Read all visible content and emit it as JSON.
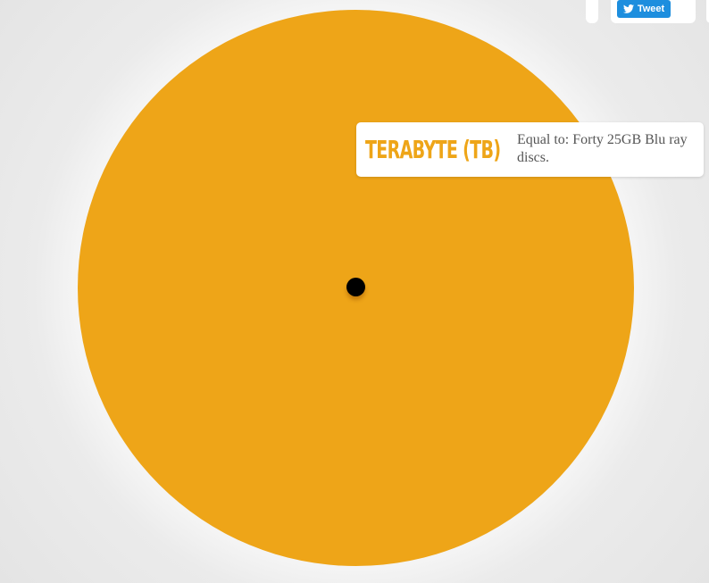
{
  "share": {
    "tweet_label": "Tweet"
  },
  "info": {
    "unit_name": "TERABYTE (TB)",
    "description": "Equal to: Forty 25GB Blu ray discs."
  },
  "colors": {
    "disc": "#eea518",
    "tweet_button": "#1d8ede",
    "dot": "#000000"
  },
  "icons": {
    "tweet": "twitter-bird-icon"
  }
}
